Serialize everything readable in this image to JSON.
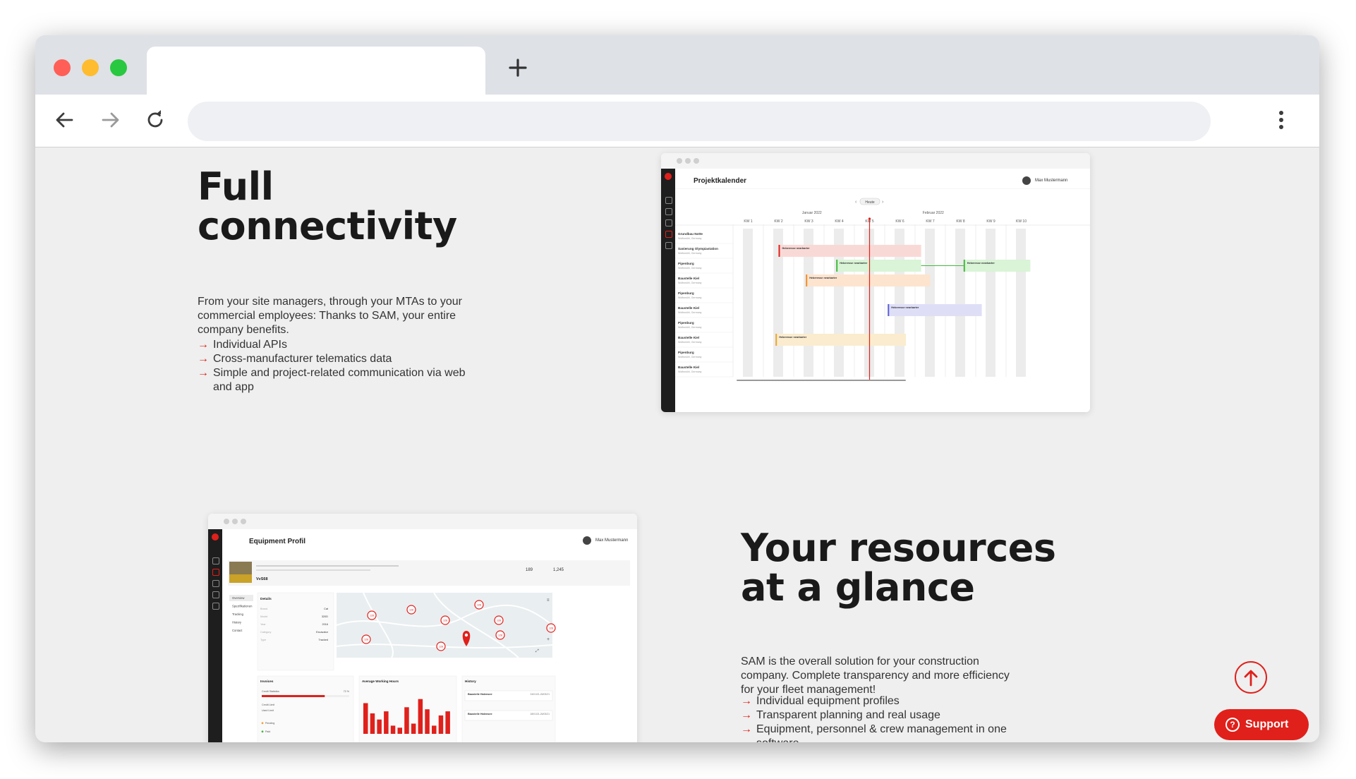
{
  "browser": {
    "active_tab_title": "",
    "new_tab_icon": "plus-icon",
    "url": "",
    "nav_icons": [
      "back-arrow-icon",
      "forward-arrow-icon",
      "reload-icon",
      "kebab-menu-icon"
    ]
  },
  "section1": {
    "title": "Full connectivity",
    "body": "From your site managers, through your MTAs to your commercial employees: Thanks to SAM, your entire company benefits.",
    "features": [
      "Individual APIs",
      "Cross-manufacturer telematics data",
      "Simple and project-related communication via web and app"
    ],
    "bullet": "→"
  },
  "calendar_mock": {
    "title": "Projektkalender",
    "user": "Max Mustermann",
    "today_button": "Heute",
    "months": [
      "Januar 2022",
      "Februar 2022"
    ],
    "weeks": [
      "KW 1",
      "KW 2",
      "KW 3",
      "KW 4",
      "KW 5",
      "KW 6",
      "KW 7",
      "KW 8",
      "KW 9",
      "KW 10"
    ],
    "rows": [
      "Grundbau Notte",
      "Sanierung Olympiastation",
      "Pipenburg",
      "Baustelle Kiel",
      "Pipenburg",
      "Baustelle Kiel",
      "Pipenburg",
      "Baustelle Kiel",
      "Pipenburg",
      "Baustelle Kiel"
    ],
    "row_sub": "Wolfsmühl, Germany",
    "events": [
      {
        "label": "Heberesse nearbarter",
        "row": 1,
        "start_week": 1.5,
        "end_week": 6.2,
        "color": "#f9d9d6",
        "stripe": "#e0201b"
      },
      {
        "label": "Heberesse nearbarter",
        "row": 2,
        "start_week": 3.4,
        "end_week": 6.2,
        "color": "#d9f4d6",
        "stripe": "#45b840"
      },
      {
        "label": "Heberesse nearbarter",
        "row": 2,
        "start_week": 7.6,
        "end_week": 9.8,
        "color": "#d9f4d6",
        "stripe": "#45b840"
      },
      {
        "label": "Heberesse nearbarter",
        "row": 3,
        "start_week": 2.4,
        "end_week": 6.5,
        "color": "#fde4cf",
        "stripe": "#f28c28"
      },
      {
        "label": "Heberesse nearbarter",
        "row": 5,
        "start_week": 5.1,
        "end_week": 8.2,
        "color": "#dedff7",
        "stripe": "#5a5fd8"
      },
      {
        "label": "Heberesse nearbarter",
        "row": 7,
        "start_week": 1.4,
        "end_week": 5.7,
        "color": "#fbeccf",
        "stripe": "#e6a732"
      }
    ],
    "today_week": 4.5
  },
  "section2": {
    "title": "Your resources at a glance",
    "body": "SAM is the overall solution for your construction company. Complete transparency and more efficiency for your fleet management!",
    "features": [
      "Individual equipment profiles",
      "Transparent planning and real usage",
      "Equipment, personnel & crew management in one software"
    ]
  },
  "equipment_mock": {
    "title": "Equipment Profil",
    "user": "Max Mustermann",
    "stats": [
      "189",
      "1,245"
    ],
    "vehicle_id": "VvS68",
    "tabs": [
      "Overview",
      "Spezifikationen",
      "Tracking",
      "History",
      "Contact"
    ],
    "details_title": "Details",
    "details": [
      {
        "k": "Brand",
        "v": "Cat"
      },
      {
        "k": "Model",
        "v": "320D"
      },
      {
        "k": "Year",
        "v": "2016"
      },
      {
        "k": "Category",
        "v": "Excavator"
      },
      {
        "k": "Type",
        "v": "Tracked"
      }
    ],
    "invoices_title": "Invoices",
    "invoices_metric": "Credit Statistics",
    "invoices_pct": 0.72,
    "invoices_pct_label": "72 %",
    "invoices_rows": [
      "Credit Limit",
      "Used Limit",
      "Pending",
      "Paid"
    ],
    "hours_title": "Average Working Hours",
    "hours_values": [
      0.75,
      0.5,
      0.35,
      0.55,
      0.2,
      0.15,
      0.65,
      0.25,
      0.85,
      0.6,
      0.2,
      0.45,
      0.55
    ],
    "history_title": "History",
    "history_items": [
      "Baustelle Halensee",
      "Baustelle Halensee"
    ],
    "history_dates": [
      "24/01/21-26/03/21",
      "18/01/21-26/03/21"
    ],
    "map_cluster_values": [
      "128",
      "128",
      "128",
      "128",
      "128",
      "128",
      "128",
      "128",
      "128"
    ]
  },
  "widgets": {
    "scroll_top_icon": "arrow-up-circle-icon",
    "support_label": "Support",
    "support_icon": "question-icon",
    "accent": "#e0201b"
  }
}
